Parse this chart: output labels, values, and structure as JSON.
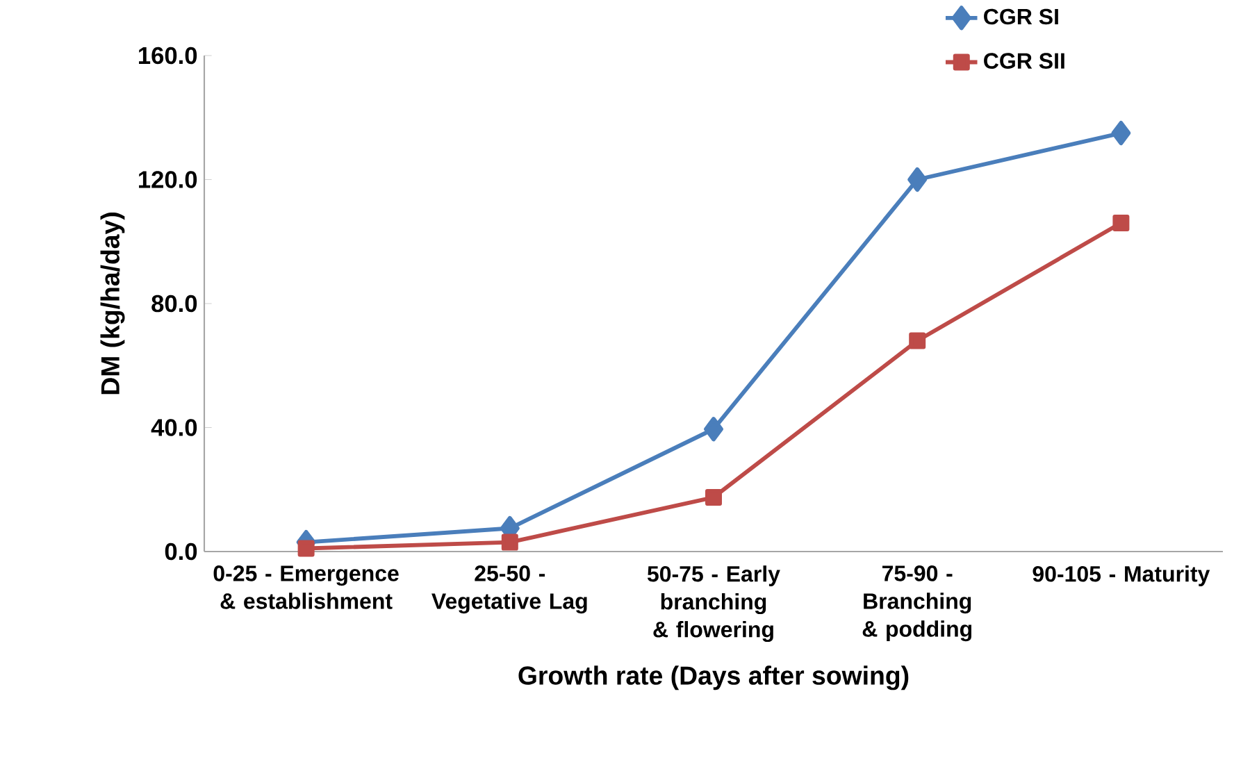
{
  "chart_data": {
    "type": "line",
    "xlabel": "Growth rate (Days after sowing)",
    "ylabel": "DM (kg/ha/day)",
    "categories": [
      "0-25 - Emergence & establishment",
      "25-50 - Vegetative Lag",
      "50-75 - Early branching & flowering",
      "75-90 - Branching & podding",
      "90-105 - Maturity"
    ],
    "series": [
      {
        "name": "CGR SI",
        "color": "#4a7ebb",
        "marker": "diamond",
        "values": [
          3,
          7.5,
          39.5,
          120,
          135
        ]
      },
      {
        "name": "CGR SII",
        "color": "#be4b48",
        "marker": "square",
        "values": [
          1,
          3,
          17.5,
          68,
          106
        ]
      }
    ],
    "ylim": [
      0,
      160
    ],
    "yticks": [
      {
        "value": 0,
        "label": "0.0"
      },
      {
        "value": 40,
        "label": "40.0"
      },
      {
        "value": 80,
        "label": "80.0"
      },
      {
        "value": 120,
        "label": "120.0"
      },
      {
        "value": 160,
        "label": "160.0"
      }
    ],
    "grid": false,
    "legend": "top right",
    "line_style": "solid"
  }
}
